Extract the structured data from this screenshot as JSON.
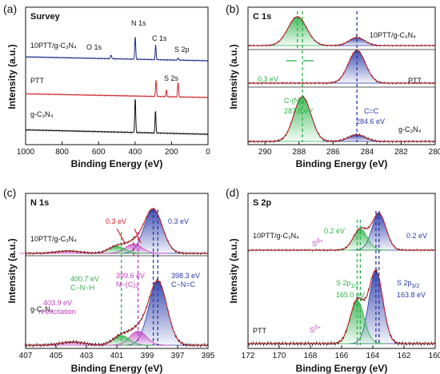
{
  "chart_data": [
    {
      "type": "line",
      "panel_label": "(a)",
      "title": "Survey",
      "xlabel": "Binding Energy (eV)",
      "ylabel": "Intensity (a.u.)",
      "xlim": [
        1000,
        0
      ],
      "x_ticks": [
        "1000",
        "800",
        "600",
        "400",
        "200",
        "0"
      ],
      "x_tick_values": [
        1000,
        800,
        600,
        400,
        200,
        0
      ],
      "series": [
        {
          "name": "10PTT/g-C3N4",
          "label": "10PTT/g-C₃N₄",
          "color": "#1f2f86",
          "offset": 2,
          "peaks": [
            {
              "x": 532,
              "h": 0.1,
              "w": 3
            },
            {
              "x": 399,
              "h": 0.62,
              "w": 2.5
            },
            {
              "x": 287,
              "h": 0.38,
              "w": 2.5
            },
            {
              "x": 164,
              "h": 0.06,
              "w": 2.5
            }
          ]
        },
        {
          "name": "PTT",
          "label": "PTT",
          "color": "#d2232a",
          "offset": 1,
          "peaks": [
            {
              "x": 285,
              "h": 0.45,
              "w": 2.5
            },
            {
              "x": 228,
              "h": 0.18,
              "w": 2.5
            },
            {
              "x": 164,
              "h": 0.42,
              "w": 2.5
            }
          ]
        },
        {
          "name": "g-C3N4",
          "label": "g-C₃N₄",
          "color": "#111111",
          "offset": 0,
          "peaks": [
            {
              "x": 399,
              "h": 0.82,
              "w": 2.5
            },
            {
              "x": 288,
              "h": 0.52,
              "w": 2.5
            }
          ]
        }
      ],
      "annotations": [
        "O 1s",
        "N 1s",
        "C 1s",
        "S 2p",
        "S 2s"
      ]
    },
    {
      "type": "line",
      "panel_label": "(b)",
      "title": "C 1s",
      "xlabel": "Binding Energy (eV)",
      "ylabel": "Intensity (a.u.)",
      "xlim": [
        291,
        280
      ],
      "x_ticks": [
        "290",
        "288",
        "286",
        "284",
        "282",
        "280"
      ],
      "x_tick_values": [
        290,
        288,
        286,
        284,
        282,
        280
      ],
      "series": [
        {
          "name": "10PTT/g-C3N4",
          "label": "10PTT/g-C₃N₄",
          "peaks": [
            {
              "x": 288.1,
              "h": 0.9,
              "w": 0.55,
              "color": "#2db34a"
            },
            {
              "x": 284.6,
              "h": 0.25,
              "w": 0.45,
              "color": "#2a3aa8"
            }
          ]
        },
        {
          "name": "PTT",
          "label": "PTT",
          "peaks": [
            {
              "x": 284.6,
              "h": 0.85,
              "w": 0.5,
              "color": "#2a3aa8"
            }
          ]
        },
        {
          "name": "g-C3N4",
          "label": "g-C₃N₄",
          "peaks": [
            {
              "x": 287.8,
              "h": 1.0,
              "w": 0.5,
              "color": "#2db34a"
            },
            {
              "x": 284.6,
              "h": 0.15,
              "w": 0.5,
              "color": "#2a3aa8"
            }
          ]
        }
      ],
      "annotations": {
        "shift": "0.3 eV",
        "cn3_label": "C-(N)₃",
        "cn3_value": "287.8 eV",
        "cc_label": "C=C",
        "cc_value": "284.6 eV"
      }
    },
    {
      "type": "line",
      "panel_label": "(c)",
      "title": "N 1s",
      "xlabel": "Binding Energy (eV)",
      "ylabel": "Intensity (a.u.)",
      "xlim": [
        407,
        395
      ],
      "x_ticks": [
        "407",
        "405",
        "403",
        "401",
        "399",
        "397",
        "395"
      ],
      "x_tick_values": [
        407,
        405,
        403,
        401,
        399,
        397,
        395
      ],
      "series": [
        {
          "name": "10PTT/g-C3N4",
          "label": "10PTT/g-C₃N₄",
          "peaks": [
            {
              "x": 398.6,
              "h": 0.95,
              "w": 0.6,
              "color": "#2a3aa8"
            },
            {
              "x": 399.9,
              "h": 0.2,
              "w": 0.55,
              "color": "#c33fc1"
            },
            {
              "x": 401.0,
              "h": 0.15,
              "w": 0.55,
              "color": "#2db34a"
            },
            {
              "x": 404.2,
              "h": 0.05,
              "w": 0.8,
              "color": "#c33fc1"
            }
          ]
        },
        {
          "name": "g-C3N4",
          "label": "g-C₃N₄",
          "peaks": [
            {
              "x": 398.3,
              "h": 1.0,
              "w": 0.6,
              "color": "#2a3aa8"
            },
            {
              "x": 399.6,
              "h": 0.22,
              "w": 0.55,
              "color": "#c33fc1"
            },
            {
              "x": 400.7,
              "h": 0.15,
              "w": 0.55,
              "color": "#2db34a"
            },
            {
              "x": 403.9,
              "h": 0.05,
              "w": 0.8,
              "color": "#c33fc1"
            }
          ]
        }
      ],
      "annotations": {
        "shift_red": "0.3 eV",
        "shift_blue": "0.3 eV",
        "cnh_value": "400.7 eV",
        "cnh_label": "C−N−H",
        "nc3_value": "399.6 eV",
        "nc3_label": "N−(C)₃",
        "cnc_value": "398.3 eV",
        "cnc_label": "C−N=C",
        "pi_value": "403.9 eV",
        "pi_label": "π excitation"
      }
    },
    {
      "type": "line",
      "panel_label": "(d)",
      "title": "S 2p",
      "xlabel": "Binding Energy (eV)",
      "ylabel": "Intensity (a.u.)",
      "xlim": [
        172,
        160
      ],
      "x_ticks": [
        "172",
        "170",
        "168",
        "166",
        "164",
        "162",
        "160"
      ],
      "x_tick_values": [
        172,
        170,
        168,
        166,
        164,
        162,
        160
      ],
      "series": [
        {
          "name": "10PTT/g-C3N4",
          "label": "10PTT/g-C₃N₄",
          "peaks": [
            {
              "x": 163.6,
              "h": 0.95,
              "w": 0.45,
              "color": "#2a3aa8"
            },
            {
              "x": 164.8,
              "h": 0.55,
              "w": 0.45,
              "color": "#2db34a"
            }
          ]
        },
        {
          "name": "PTT",
          "label": "PTT",
          "peaks": [
            {
              "x": 163.8,
              "h": 1.0,
              "w": 0.45,
              "color": "#2a3aa8"
            },
            {
              "x": 165.0,
              "h": 0.6,
              "w": 0.45,
              "color": "#2db34a"
            }
          ]
        }
      ],
      "annotations": {
        "shift_green": "0.2 eV",
        "shift_blue": "0.2 eV",
        "s_delta": "S",
        "s_delta_sup": "δ+",
        "s2p12_label": "S 2p",
        "s2p12_sub": "1/2",
        "s2p12_value": "165.0 eV",
        "s2p32_label": "S 2p",
        "s2p32_sub": "3/2",
        "s2p32_value": "163.8 eV"
      }
    }
  ]
}
